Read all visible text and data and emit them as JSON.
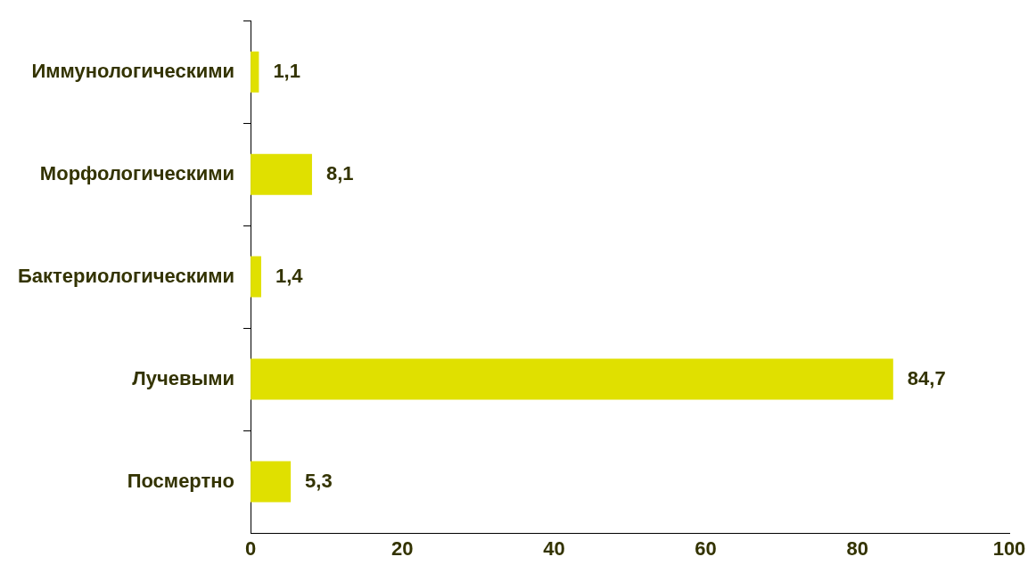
{
  "chart_data": {
    "type": "bar",
    "orientation": "horizontal",
    "categories": [
      "Иммунологическими",
      "Морфологическими",
      "Бактериологическими",
      "Лучевыми",
      "Посмертно"
    ],
    "values": [
      1.1,
      8.1,
      1.4,
      84.7,
      5.3
    ],
    "value_labels": [
      "1,1",
      "8,1",
      "1,4",
      "84,7",
      "5,3"
    ],
    "color": "#e0e000",
    "xlim": [
      0,
      100
    ],
    "xticks": [
      0,
      20,
      40,
      60,
      80,
      100
    ],
    "grid": false,
    "legend": false
  }
}
